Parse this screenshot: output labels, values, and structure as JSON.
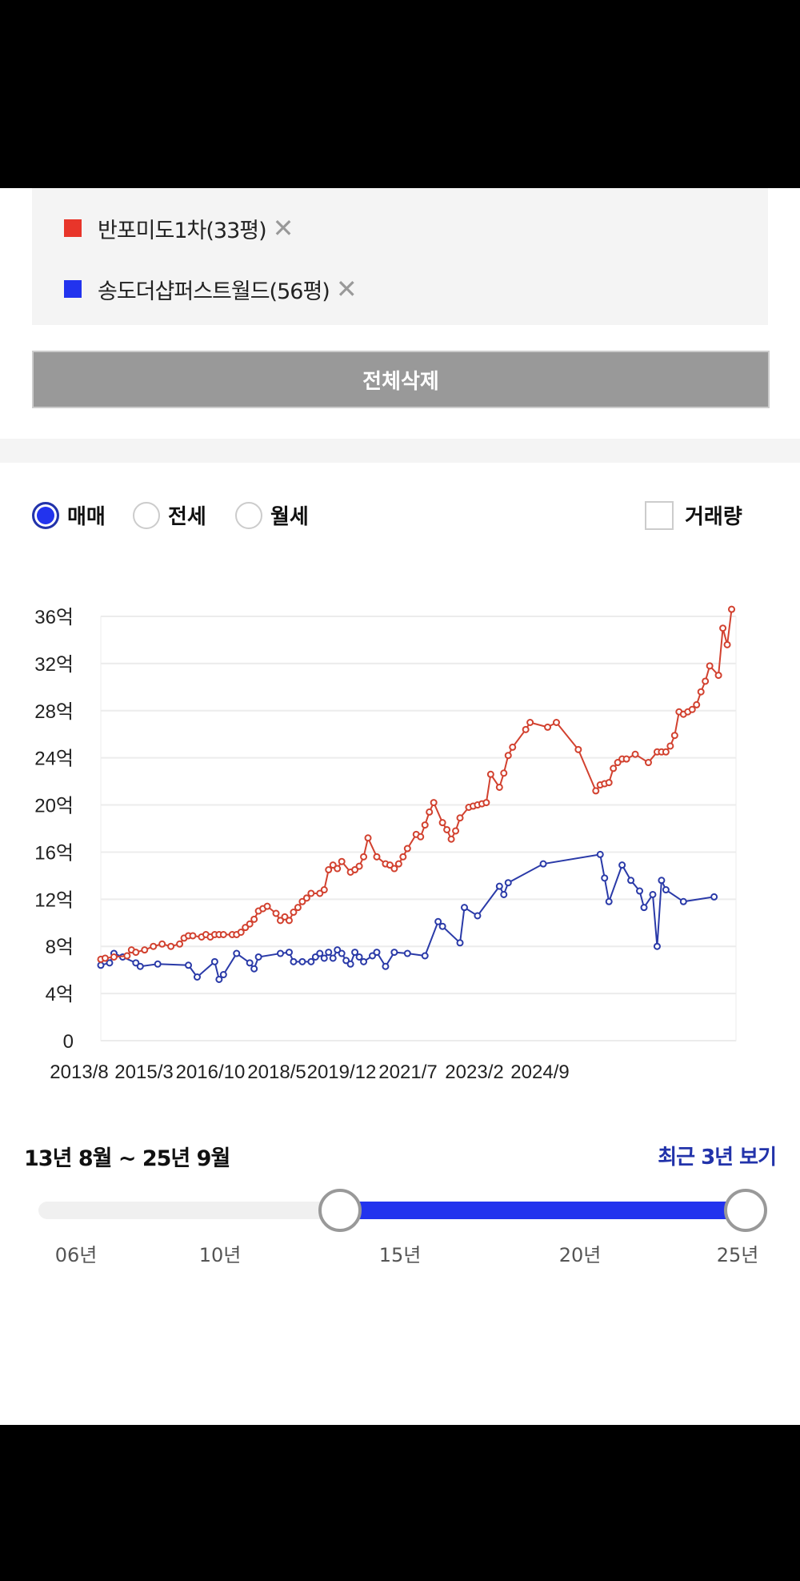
{
  "legend": {
    "items": [
      {
        "label": "반포미도1차(33평)",
        "color": "#e8352a",
        "remove_icon": "close-icon"
      },
      {
        "label": "송도더샵퍼스트월드(56평)",
        "color": "#2233ee",
        "remove_icon": "close-icon"
      }
    ],
    "clear_all_label": "전체삭제"
  },
  "trade_types": {
    "options": [
      {
        "label": "매매",
        "selected": true
      },
      {
        "label": "전세",
        "selected": false
      },
      {
        "label": "월세",
        "selected": false
      }
    ],
    "volume_checkbox": {
      "label": "거래량",
      "checked": false
    }
  },
  "chart_data": {
    "type": "line",
    "x_type": "date",
    "xlim": [
      "2013-08",
      "2025-09"
    ],
    "ylim": [
      0,
      36
    ],
    "y_unit": "억",
    "y_ticks": [
      "0",
      "4억",
      "8억",
      "12억",
      "16억",
      "20억",
      "24억",
      "28억",
      "32억",
      "36억"
    ],
    "x_tick_labels": [
      "2013/8",
      "2015/3",
      "2016/10",
      "2018/5",
      "2019/12",
      "2021/7",
      "2023/2",
      "2024/9"
    ],
    "grid": true,
    "series": [
      {
        "name": "반포미도1차(33평)",
        "color": "#d2412f",
        "points": [
          [
            "2013-08",
            6.9
          ],
          [
            "2013-09",
            7.0
          ],
          [
            "2013-11",
            7.1
          ],
          [
            "2014-02",
            7.2
          ],
          [
            "2014-03",
            7.7
          ],
          [
            "2014-04",
            7.5
          ],
          [
            "2014-06",
            7.7
          ],
          [
            "2014-08",
            8.0
          ],
          [
            "2014-10",
            8.2
          ],
          [
            "2014-12",
            8.0
          ],
          [
            "2015-02",
            8.2
          ],
          [
            "2015-03",
            8.7
          ],
          [
            "2015-04",
            8.9
          ],
          [
            "2015-05",
            8.9
          ],
          [
            "2015-07",
            8.8
          ],
          [
            "2015-08",
            9.0
          ],
          [
            "2015-09",
            8.8
          ],
          [
            "2015-10",
            9.0
          ],
          [
            "2015-11",
            9.0
          ],
          [
            "2015-12",
            9.0
          ],
          [
            "2016-02",
            9.0
          ],
          [
            "2016-03",
            9.0
          ],
          [
            "2016-04",
            9.2
          ],
          [
            "2016-05",
            9.6
          ],
          [
            "2016-06",
            9.9
          ],
          [
            "2016-07",
            10.3
          ],
          [
            "2016-08",
            11.0
          ],
          [
            "2016-09",
            11.2
          ],
          [
            "2016-10",
            11.4
          ],
          [
            "2016-12",
            10.8
          ],
          [
            "2017-01",
            10.2
          ],
          [
            "2017-02",
            10.5
          ],
          [
            "2017-03",
            10.2
          ],
          [
            "2017-04",
            10.9
          ],
          [
            "2017-05",
            11.3
          ],
          [
            "2017-06",
            11.8
          ],
          [
            "2017-07",
            12.1
          ],
          [
            "2017-08",
            12.5
          ],
          [
            "2017-10",
            12.5
          ],
          [
            "2017-11",
            12.8
          ],
          [
            "2017-12",
            14.5
          ],
          [
            "2018-01",
            14.9
          ],
          [
            "2018-02",
            14.6
          ],
          [
            "2018-03",
            15.2
          ],
          [
            "2018-05",
            14.3
          ],
          [
            "2018-06",
            14.5
          ],
          [
            "2018-07",
            14.8
          ],
          [
            "2018-08",
            15.6
          ],
          [
            "2018-09",
            17.2
          ],
          [
            "2018-11",
            15.6
          ],
          [
            "2019-01",
            15.0
          ],
          [
            "2019-02",
            14.9
          ],
          [
            "2019-03",
            14.6
          ],
          [
            "2019-04",
            15.0
          ],
          [
            "2019-05",
            15.6
          ],
          [
            "2019-06",
            16.3
          ],
          [
            "2019-08",
            17.5
          ],
          [
            "2019-09",
            17.3
          ],
          [
            "2019-10",
            18.3
          ],
          [
            "2019-11",
            19.4
          ],
          [
            "2019-12",
            20.2
          ],
          [
            "2020-02",
            18.5
          ],
          [
            "2020-03",
            17.9
          ],
          [
            "2020-04",
            17.1
          ],
          [
            "2020-05",
            17.8
          ],
          [
            "2020-06",
            18.9
          ],
          [
            "2020-08",
            19.8
          ],
          [
            "2020-09",
            19.9
          ],
          [
            "2020-10",
            20.0
          ],
          [
            "2020-11",
            20.1
          ],
          [
            "2020-12",
            20.2
          ],
          [
            "2021-01",
            22.6
          ],
          [
            "2021-03",
            21.5
          ],
          [
            "2021-04",
            22.7
          ],
          [
            "2021-05",
            24.2
          ],
          [
            "2021-06",
            24.9
          ],
          [
            "2021-09",
            26.4
          ],
          [
            "2021-10",
            27.0
          ],
          [
            "2022-02",
            26.6
          ],
          [
            "2022-04",
            27.0
          ],
          [
            "2022-09",
            24.7
          ],
          [
            "2023-01",
            21.2
          ],
          [
            "2023-02",
            21.7
          ],
          [
            "2023-03",
            21.8
          ],
          [
            "2023-04",
            21.9
          ],
          [
            "2023-05",
            23.1
          ],
          [
            "2023-06",
            23.6
          ],
          [
            "2023-07",
            23.9
          ],
          [
            "2023-08",
            23.9
          ],
          [
            "2023-10",
            24.3
          ],
          [
            "2024-01",
            23.6
          ],
          [
            "2024-03",
            24.5
          ],
          [
            "2024-04",
            24.5
          ],
          [
            "2024-05",
            24.5
          ],
          [
            "2024-06",
            25.0
          ],
          [
            "2024-07",
            25.9
          ],
          [
            "2024-08",
            27.9
          ],
          [
            "2024-09",
            27.7
          ],
          [
            "2024-10",
            27.9
          ],
          [
            "2024-11",
            28.1
          ],
          [
            "2024-12",
            28.5
          ],
          [
            "2025-01",
            29.6
          ],
          [
            "2025-02",
            30.5
          ],
          [
            "2025-03",
            31.8
          ],
          [
            "2025-05",
            31.0
          ],
          [
            "2025-06",
            35.0
          ],
          [
            "2025-07",
            33.6
          ],
          [
            "2025-08",
            36.6
          ]
        ]
      },
      {
        "name": "송도더샵퍼스트월드(56평)",
        "color": "#2a3aa8",
        "points": [
          [
            "2013-08",
            6.4
          ],
          [
            "2013-10",
            6.6
          ],
          [
            "2013-11",
            7.4
          ],
          [
            "2014-01",
            7.1
          ],
          [
            "2014-04",
            6.6
          ],
          [
            "2014-05",
            6.3
          ],
          [
            "2014-09",
            6.5
          ],
          [
            "2015-04",
            6.4
          ],
          [
            "2015-06",
            5.4
          ],
          [
            "2015-10",
            6.7
          ],
          [
            "2015-11",
            5.2
          ],
          [
            "2015-12",
            5.6
          ],
          [
            "2016-03",
            7.4
          ],
          [
            "2016-06",
            6.6
          ],
          [
            "2016-07",
            6.1
          ],
          [
            "2016-08",
            7.1
          ],
          [
            "2017-01",
            7.4
          ],
          [
            "2017-03",
            7.5
          ],
          [
            "2017-04",
            6.7
          ],
          [
            "2017-06",
            6.7
          ],
          [
            "2017-08",
            6.7
          ],
          [
            "2017-09",
            7.1
          ],
          [
            "2017-10",
            7.4
          ],
          [
            "2017-11",
            7.0
          ],
          [
            "2017-12",
            7.5
          ],
          [
            "2018-01",
            7.0
          ],
          [
            "2018-02",
            7.7
          ],
          [
            "2018-03",
            7.4
          ],
          [
            "2018-04",
            6.8
          ],
          [
            "2018-05",
            6.5
          ],
          [
            "2018-06",
            7.5
          ],
          [
            "2018-07",
            7.1
          ],
          [
            "2018-08",
            6.7
          ],
          [
            "2018-10",
            7.2
          ],
          [
            "2018-11",
            7.5
          ],
          [
            "2019-01",
            6.3
          ],
          [
            "2019-03",
            7.5
          ],
          [
            "2019-06",
            7.4
          ],
          [
            "2019-10",
            7.2
          ],
          [
            "2020-01",
            10.1
          ],
          [
            "2020-02",
            9.7
          ],
          [
            "2020-06",
            8.3
          ],
          [
            "2020-07",
            11.3
          ],
          [
            "2020-10",
            10.6
          ],
          [
            "2021-03",
            13.1
          ],
          [
            "2021-04",
            12.4
          ],
          [
            "2021-05",
            13.4
          ],
          [
            "2022-01",
            15.0
          ],
          [
            "2023-02",
            15.8
          ],
          [
            "2023-03",
            13.8
          ],
          [
            "2023-04",
            11.8
          ],
          [
            "2023-07",
            14.9
          ],
          [
            "2023-09",
            13.6
          ],
          [
            "2023-11",
            12.7
          ],
          [
            "2023-12",
            11.3
          ],
          [
            "2024-02",
            12.4
          ],
          [
            "2024-03",
            8.0
          ],
          [
            "2024-04",
            13.6
          ],
          [
            "2024-05",
            12.8
          ],
          [
            "2024-09",
            11.8
          ],
          [
            "2025-04",
            12.2
          ]
        ]
      }
    ]
  },
  "period": {
    "range_label": "13년 8월 ~ 25년 9월",
    "start": "2013-08",
    "end": "2025-09",
    "recent_link": "최근 3년 보기",
    "tick_labels": [
      "06년",
      "10년",
      "15년",
      "20년",
      "25년"
    ],
    "accent": "#2233ee"
  }
}
